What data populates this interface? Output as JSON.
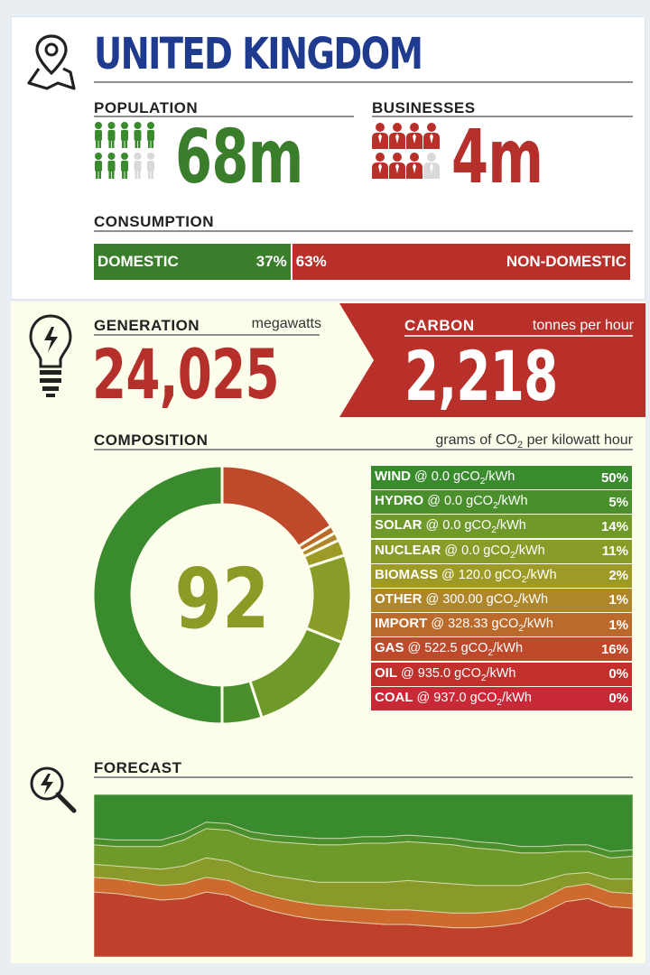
{
  "region": {
    "title": "UNITED KINGDOM"
  },
  "population": {
    "label": "POPULATION",
    "value": "68m",
    "icons_filled": 8,
    "icons_total": 10,
    "color": "#3a8a2e"
  },
  "businesses": {
    "label": "BUSINESSES",
    "value": "4m",
    "icons_filled": 7,
    "icons_total": 8,
    "color": "#b9302b"
  },
  "consumption": {
    "label": "CONSUMPTION",
    "domestic_label": "DOMESTIC",
    "domestic_pct": "37%",
    "domestic_fraction": 0.37,
    "nondomestic_label": "NON-DOMESTIC",
    "nondomestic_pct": "63%"
  },
  "generation": {
    "label": "GENERATION",
    "unit": "megawatts",
    "value": "24,025"
  },
  "carbon": {
    "label": "CARBON",
    "unit": "tonnes per hour",
    "value": "2,218"
  },
  "composition": {
    "label": "COMPOSITION",
    "unit_prefix": "grams of CO",
    "unit_sub": "2",
    "unit_suffix": " per kilowatt hour",
    "intensity": "92"
  },
  "chart_data": [
    {
      "type": "pie",
      "subtype": "donut",
      "center_value": "92",
      "categories": [
        "WIND",
        "HYDRO",
        "SOLAR",
        "NUCLEAR",
        "BIOMASS",
        "OTHER",
        "IMPORT",
        "GAS",
        "OIL",
        "COAL"
      ],
      "intensity": [
        "0.0",
        "0.0",
        "0.0",
        "0.0",
        "120.0",
        "300.00",
        "328.33",
        "522.5",
        "935.0",
        "937.0"
      ],
      "values": [
        50,
        5,
        14,
        11,
        2,
        1,
        1,
        16,
        0,
        0
      ],
      "labels": [
        "50%",
        "5%",
        "14%",
        "11%",
        "2%",
        "1%",
        "1%",
        "16%",
        "0%",
        "0%"
      ],
      "colors": [
        "#3a8a2e",
        "#4a8f2c",
        "#6f9a2a",
        "#879d28",
        "#9e9a26",
        "#b0862a",
        "#bb6a2b",
        "#be4a2b",
        "#c2302c",
        "#c92837"
      ]
    },
    {
      "type": "area",
      "title": "FORECAST",
      "stacked": true,
      "x": [
        0,
        1,
        2,
        3,
        4,
        5,
        6,
        7,
        8,
        9,
        10,
        11,
        12,
        13,
        14,
        15,
        16,
        17,
        18,
        19,
        20,
        21,
        22,
        23,
        24
      ],
      "series": [
        {
          "values": [
            40,
            39,
            37,
            35,
            36,
            40,
            38,
            32,
            28,
            25,
            23,
            22,
            21,
            20,
            20,
            19,
            18,
            18,
            19,
            21,
            27,
            34,
            36,
            31,
            30
          ]
        },
        {
          "values": [
            9,
            9,
            9,
            9,
            9,
            9,
            9,
            9,
            9,
            9,
            9,
            9,
            9,
            9,
            9,
            9,
            9,
            9,
            9,
            9,
            9,
            9,
            9,
            9,
            9
          ]
        },
        {
          "values": [
            8,
            8,
            9,
            10,
            11,
            12,
            12,
            12,
            13,
            14,
            14,
            15,
            16,
            17,
            18,
            18,
            18,
            17,
            16,
            14,
            11,
            8,
            7,
            8,
            9
          ]
        },
        {
          "values": [
            12,
            12,
            13,
            14,
            16,
            18,
            19,
            20,
            21,
            22,
            23,
            23,
            24,
            24,
            24,
            24,
            24,
            23,
            22,
            20,
            17,
            14,
            13,
            13,
            14
          ]
        },
        {
          "values": [
            4,
            4,
            4,
            4,
            4,
            4,
            4,
            4,
            4,
            4,
            4,
            4,
            4,
            4,
            4,
            4,
            4,
            4,
            4,
            4,
            4,
            4,
            4,
            4,
            4
          ]
        },
        {
          "values": [
            27,
            28,
            28,
            28,
            24,
            17,
            18,
            23,
            25,
            26,
            27,
            27,
            26,
            26,
            25,
            26,
            27,
            29,
            30,
            32,
            32,
            31,
            31,
            35,
            34
          ]
        }
      ],
      "colors": [
        "#c0412b",
        "#cf6a2e",
        "#8a9a2a",
        "#6e9a2a",
        "#4a8f2c",
        "#3a8a2e"
      ]
    }
  ]
}
